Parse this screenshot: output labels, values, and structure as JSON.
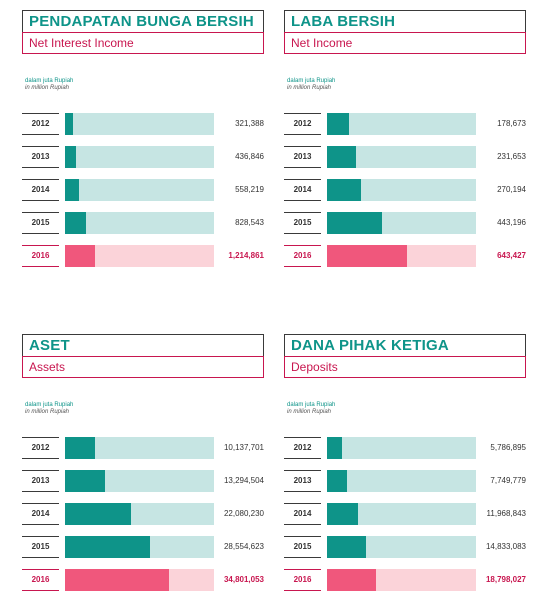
{
  "unit_label": "dalam juta Rupiah",
  "unit_label_en": "in million Rupiah",
  "colors": {
    "teal": "#0e9489",
    "teal_light": "#c6e5e3",
    "pink": "#f0577c",
    "pink_light": "#fbd3d9",
    "crimson": "#c8164f"
  },
  "chart_data": [
    {
      "type": "bar",
      "title": "PENDAPATAN BUNGA BERSIH",
      "subtitle": "Net Interest Income",
      "categories": [
        "2012",
        "2013",
        "2014",
        "2015",
        "2016"
      ],
      "values": [
        321388,
        436846,
        558219,
        828543,
        1214861
      ],
      "value_labels": [
        "321,388",
        "436,846",
        "558,219",
        "828,543",
        "1,214,861"
      ],
      "xlim": [
        0,
        6000000
      ]
    },
    {
      "type": "bar",
      "title": "LABA BERSIH",
      "subtitle": "Net Income",
      "categories": [
        "2012",
        "2013",
        "2014",
        "2015",
        "2016"
      ],
      "values": [
        178673,
        231653,
        270194,
        443196,
        643427
      ],
      "value_labels": [
        "178,673",
        "231,653",
        "270,194",
        "443,196",
        "643,427"
      ],
      "xlim": [
        0,
        1200000
      ]
    },
    {
      "type": "bar",
      "title": "ASET",
      "subtitle": "Assets",
      "categories": [
        "2012",
        "2013",
        "2014",
        "2015",
        "2016"
      ],
      "values": [
        10137701,
        13294504,
        22080230,
        28554623,
        34801053
      ],
      "value_labels": [
        "10,137,701",
        "13,294,504",
        "22,080,230",
        "28,554,623",
        "34,801,053"
      ],
      "xlim": [
        0,
        50000000
      ]
    },
    {
      "type": "bar",
      "title": "DANA PIHAK KETIGA",
      "subtitle": "Deposits",
      "categories": [
        "2012",
        "2013",
        "2014",
        "2015",
        "2016"
      ],
      "values": [
        5786895,
        7749779,
        11968843,
        14833083,
        18798027
      ],
      "value_labels": [
        "5,786,895",
        "7,749,779",
        "11,968,843",
        "14,833,083",
        "18,798,027"
      ],
      "xlim": [
        0,
        57000000
      ]
    }
  ]
}
